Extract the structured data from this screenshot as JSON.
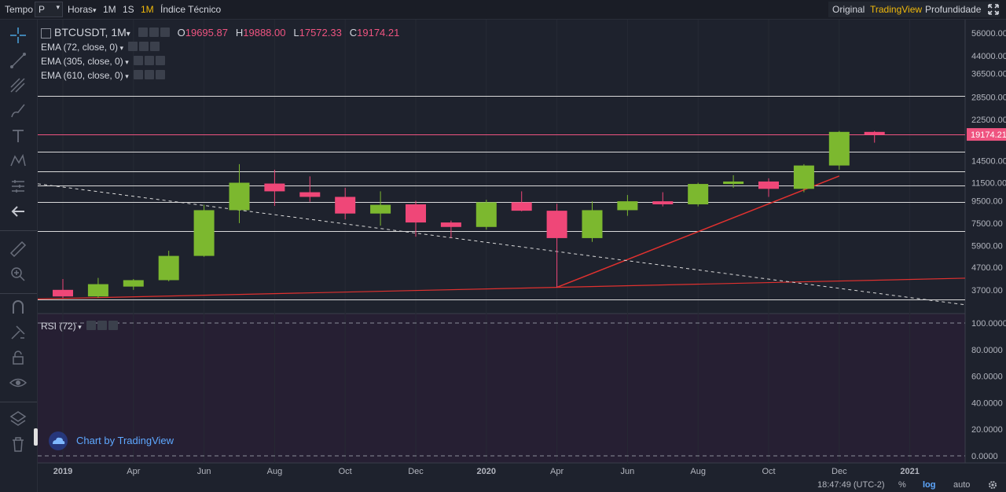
{
  "topbar": {
    "tempo_label": "Tempo",
    "period_value": "P",
    "horas_label": "Horas",
    "intervals": [
      "1M",
      "1S",
      "1M"
    ],
    "active_interval_index": 2,
    "indicator_label": "Índice Técnico",
    "views": [
      "Original",
      "TradingView",
      "Profundidade"
    ],
    "active_view_index": 1
  },
  "sidebar_icons": [
    "crosshair-icon",
    "trend-line-icon",
    "fib-icon",
    "brush-icon",
    "text-icon",
    "pattern-icon",
    "measure-icon",
    "back-arrow-icon",
    "ruler-icon",
    "zoom-icon",
    "magnet-icon",
    "lock-drawing-icon",
    "lock-icon",
    "eye-icon",
    "layers-icon",
    "trash-icon"
  ],
  "legend": {
    "symbol": "BTCUSDT, 1M",
    "o_label": "O",
    "o_value": "19695.87",
    "h_label": "H",
    "h_value": "19888.00",
    "l_label": "L",
    "l_value": "17572.33",
    "c_label": "C",
    "c_value": "19174.21",
    "ema": [
      "EMA (72, close, 0)",
      "EMA (305, close, 0)",
      "EMA (610, close, 0)"
    ],
    "rsi": "RSI (72)"
  },
  "watermark": "Chart by TradingView",
  "status": {
    "time": "18:47:49 (UTC-2)",
    "percent": "%",
    "log": "log",
    "auto": "auto"
  },
  "colors": {
    "up": "#7cb82f",
    "down": "#ef4778",
    "trendline": "#e0312f",
    "hline": "#d9d9d9",
    "price_line": "#ef5480",
    "accent": "#f0b90b",
    "rsi_bg": "#261f33"
  },
  "chart_data": {
    "type": "candlestick",
    "title": "BTCUSDT, 1M",
    "y_scale": "log",
    "y_ticks": [
      "56000.00",
      "44000.00",
      "36500.00",
      "28500.00",
      "22500.00",
      "14500.00",
      "11500.00",
      "9500.00",
      "7500.00",
      "5900.00",
      "4700.00",
      "3700.00"
    ],
    "x_ticks": [
      "2019",
      "Apr",
      "Jun",
      "Aug",
      "Oct",
      "Dec",
      "2020",
      "Apr",
      "Jun",
      "Aug",
      "Oct",
      "Dec",
      "2021"
    ],
    "last_price_label": "19174.21",
    "candles": [
      {
        "t": "2019-01",
        "o": 3700,
        "h": 4150,
        "l": 3380,
        "c": 3450
      },
      {
        "t": "2019-02",
        "o": 3450,
        "h": 4200,
        "l": 3400,
        "c": 3930
      },
      {
        "t": "2019-03",
        "o": 3830,
        "h": 4150,
        "l": 3700,
        "c": 4100
      },
      {
        "t": "2019-04",
        "o": 4100,
        "h": 5600,
        "l": 4050,
        "c": 5300
      },
      {
        "t": "2019-05",
        "o": 5300,
        "h": 9100,
        "l": 5250,
        "c": 8600
      },
      {
        "t": "2019-06",
        "o": 8600,
        "h": 14000,
        "l": 7500,
        "c": 11500
      },
      {
        "t": "2019-07",
        "o": 11400,
        "h": 13200,
        "l": 9000,
        "c": 10500
      },
      {
        "t": "2019-08",
        "o": 10400,
        "h": 12300,
        "l": 9400,
        "c": 9900
      },
      {
        "t": "2019-09",
        "o": 9900,
        "h": 10900,
        "l": 7800,
        "c": 8300
      },
      {
        "t": "2019-10",
        "o": 8300,
        "h": 10500,
        "l": 7300,
        "c": 9100
      },
      {
        "t": "2019-11",
        "o": 9150,
        "h": 9500,
        "l": 6500,
        "c": 7550
      },
      {
        "t": "2019-12",
        "o": 7550,
        "h": 7700,
        "l": 6400,
        "c": 7200
      },
      {
        "t": "2020-01",
        "o": 7200,
        "h": 9600,
        "l": 7000,
        "c": 9350
      },
      {
        "t": "2020-02",
        "o": 9350,
        "h": 10500,
        "l": 8500,
        "c": 8550
      },
      {
        "t": "2020-03",
        "o": 8550,
        "h": 9200,
        "l": 3800,
        "c": 6400
      },
      {
        "t": "2020-04",
        "o": 6400,
        "h": 9450,
        "l": 6150,
        "c": 8600
      },
      {
        "t": "2020-05",
        "o": 8600,
        "h": 10100,
        "l": 8100,
        "c": 9450
      },
      {
        "t": "2020-06",
        "o": 9450,
        "h": 10400,
        "l": 8950,
        "c": 9150
      },
      {
        "t": "2020-07",
        "o": 9150,
        "h": 11500,
        "l": 8950,
        "c": 11350
      },
      {
        "t": "2020-08",
        "o": 11350,
        "h": 12450,
        "l": 10900,
        "c": 11650
      },
      {
        "t": "2020-09",
        "o": 11650,
        "h": 12050,
        "l": 9900,
        "c": 10780
      },
      {
        "t": "2020-10",
        "o": 10780,
        "h": 14000,
        "l": 10400,
        "c": 13800
      },
      {
        "t": "2020-11",
        "o": 13800,
        "h": 19900,
        "l": 13200,
        "c": 19700
      },
      {
        "t": "2020-12",
        "o": 19695.87,
        "h": 19888.0,
        "l": 17572.33,
        "c": 19174.21
      }
    ],
    "horizontal_levels": [
      28800,
      19174.21,
      16000,
      13000,
      11200,
      9400,
      6900,
      3350
    ],
    "rsi_ticks": [
      "100.0000",
      "80.0000",
      "60.0000",
      "40.0000",
      "20.0000",
      "0.0000"
    ],
    "rsi_range": [
      0,
      100
    ]
  }
}
